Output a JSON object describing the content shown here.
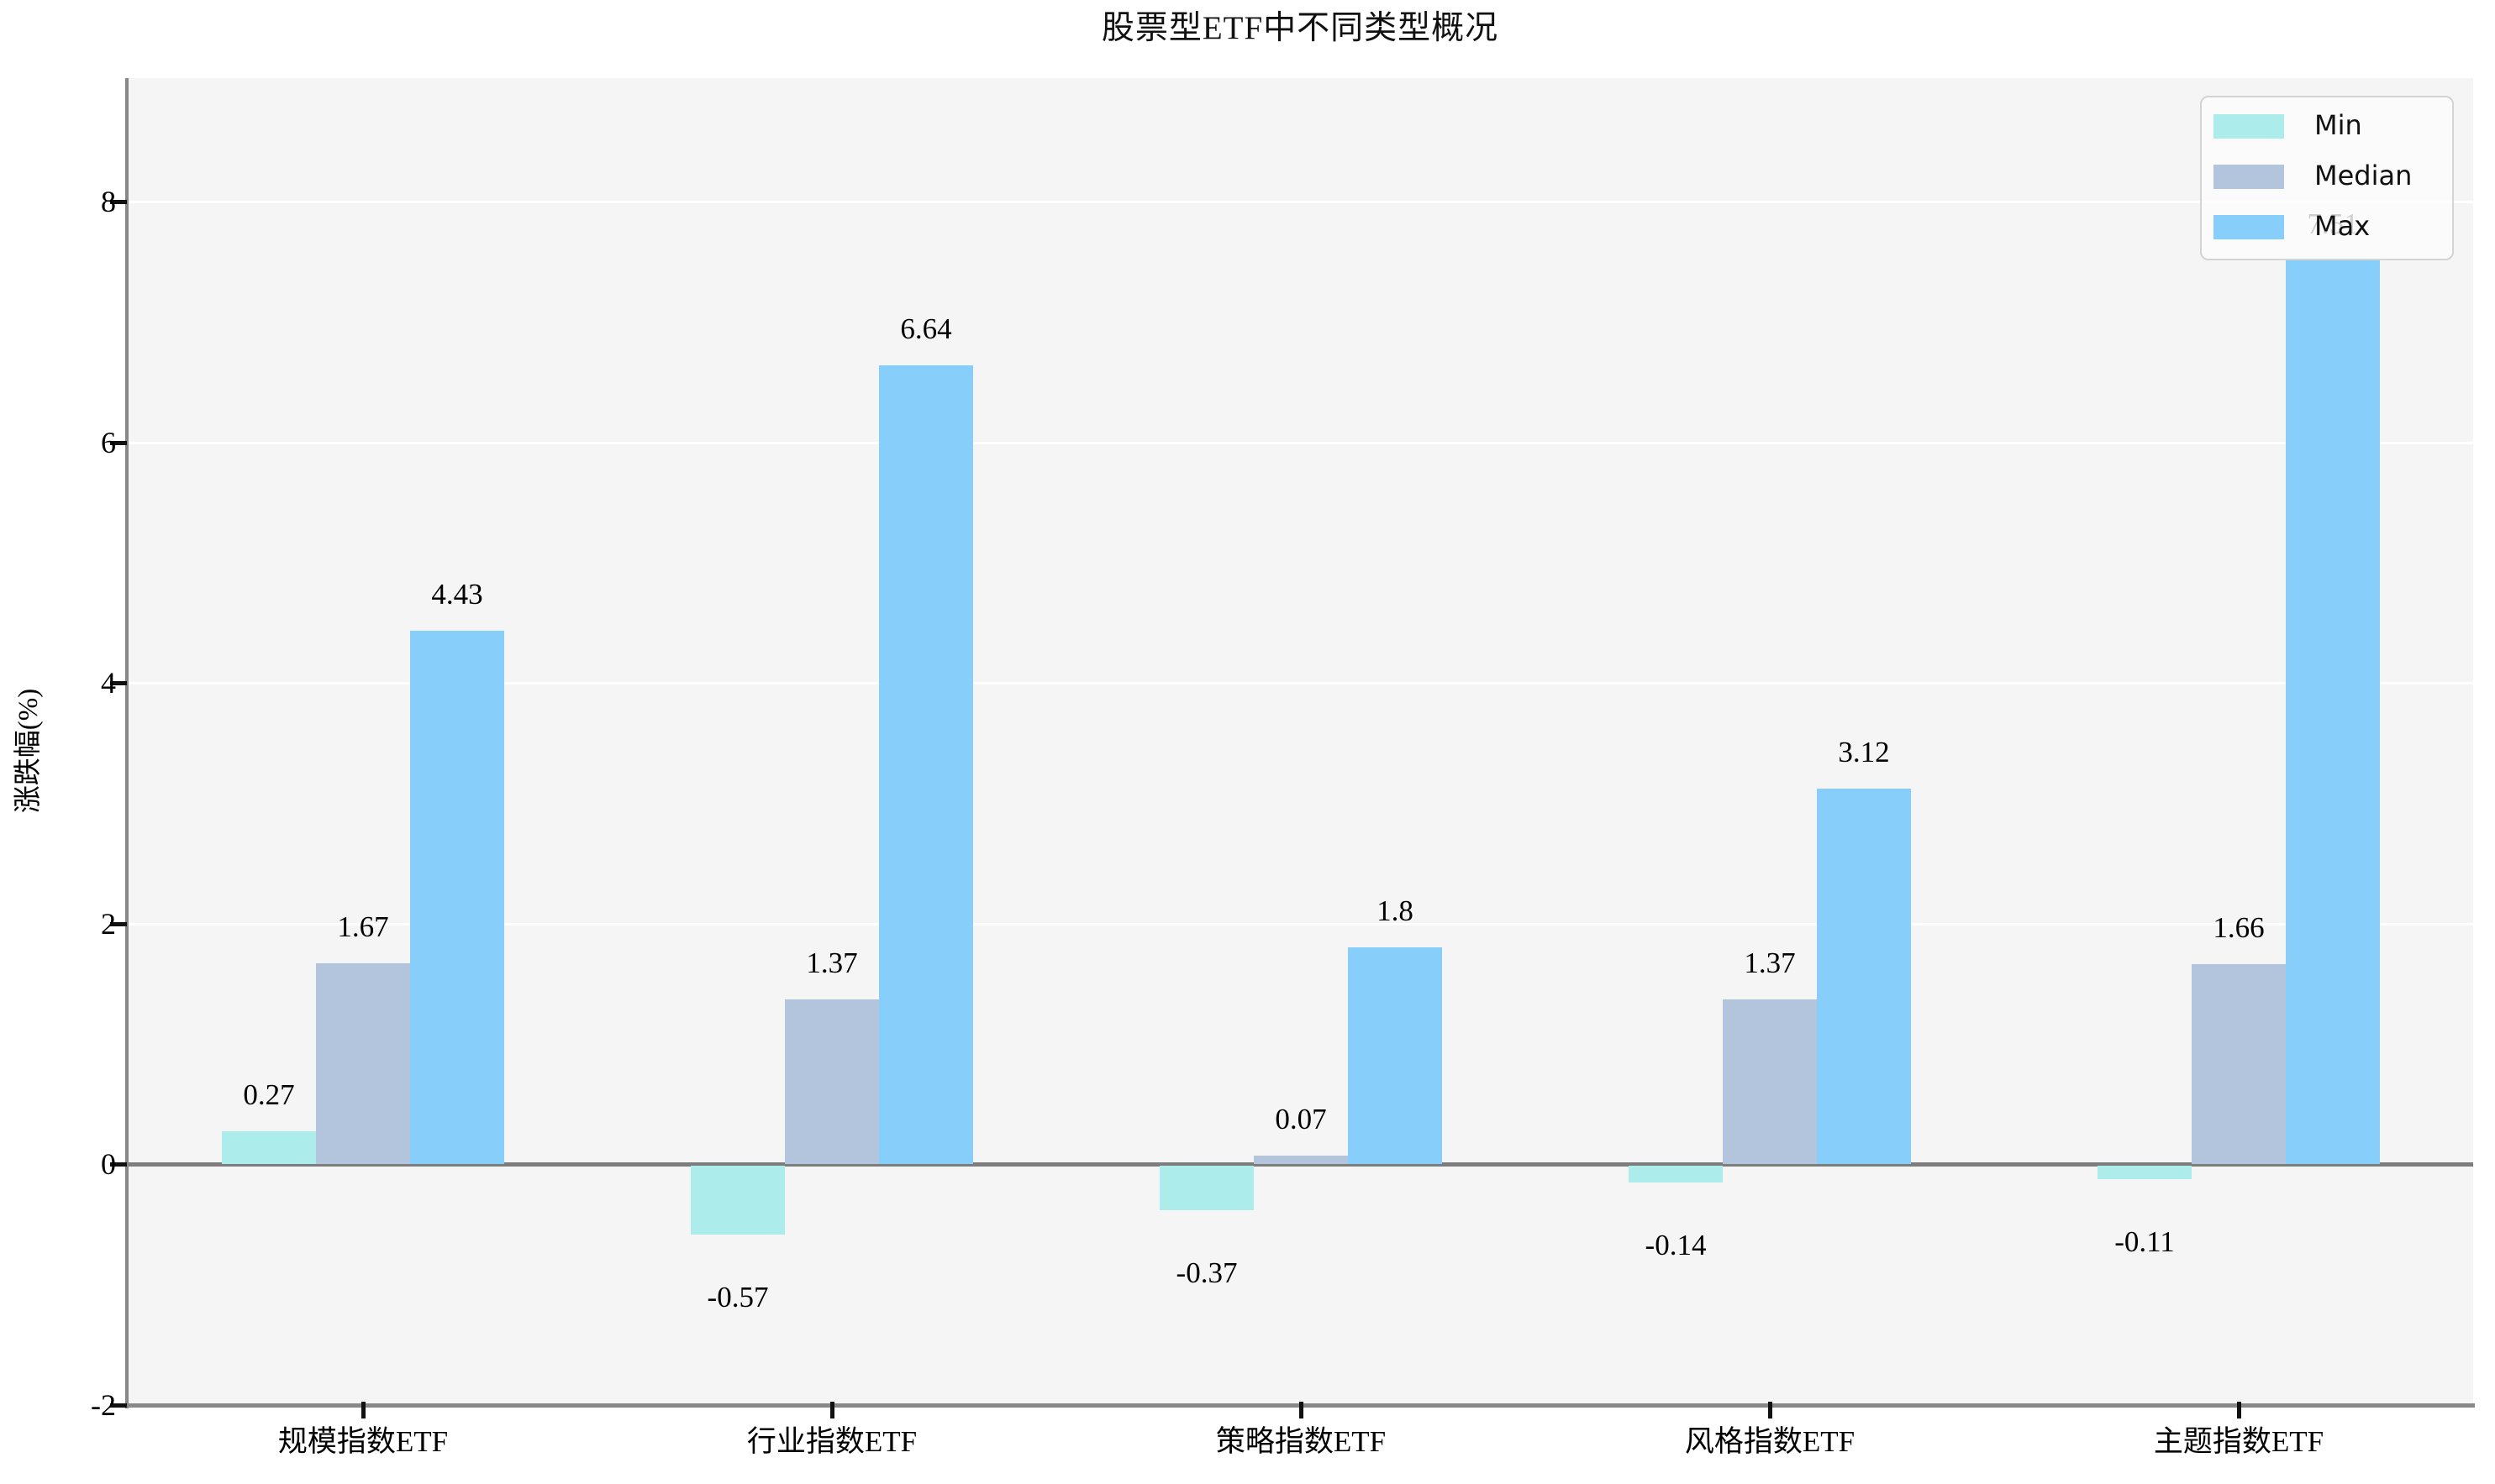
{
  "title": "股票型ETF中不同类型概况",
  "chart_data": {
    "type": "bar",
    "title": "股票型ETF中不同类型概况",
    "xlabel": "",
    "ylabel": "涨跌幅(%)",
    "categories": [
      "规模指数ETF",
      "行业指数ETF",
      "策略指数ETF",
      "风格指数ETF",
      "主题指数ETF"
    ],
    "series": [
      {
        "name": "Min",
        "color": "#aceceb",
        "values": [
          0.27,
          -0.57,
          -0.37,
          -0.14,
          -0.11
        ]
      },
      {
        "name": "Median",
        "color": "#b3c4dd",
        "values": [
          1.67,
          1.37,
          0.07,
          1.37,
          1.66
        ]
      },
      {
        "name": "Max",
        "color": "#87cefa",
        "values": [
          4.43,
          6.64,
          1.8,
          3.12,
          7.51
        ]
      }
    ],
    "yticks": [
      -2,
      0,
      2,
      4,
      6,
      8
    ],
    "ylim": [
      -2,
      9.03
    ],
    "grid": "horizontal white gridlines at 2,4,6,8",
    "zero_line_color": "#7d7d7d",
    "plot_background": "#f5f5f5",
    "legend_position": "upper right",
    "legend_labels": [
      "Min",
      "Median",
      "Max"
    ],
    "value_labels_shown": true,
    "note_partially_hidden_label": "7.51"
  }
}
